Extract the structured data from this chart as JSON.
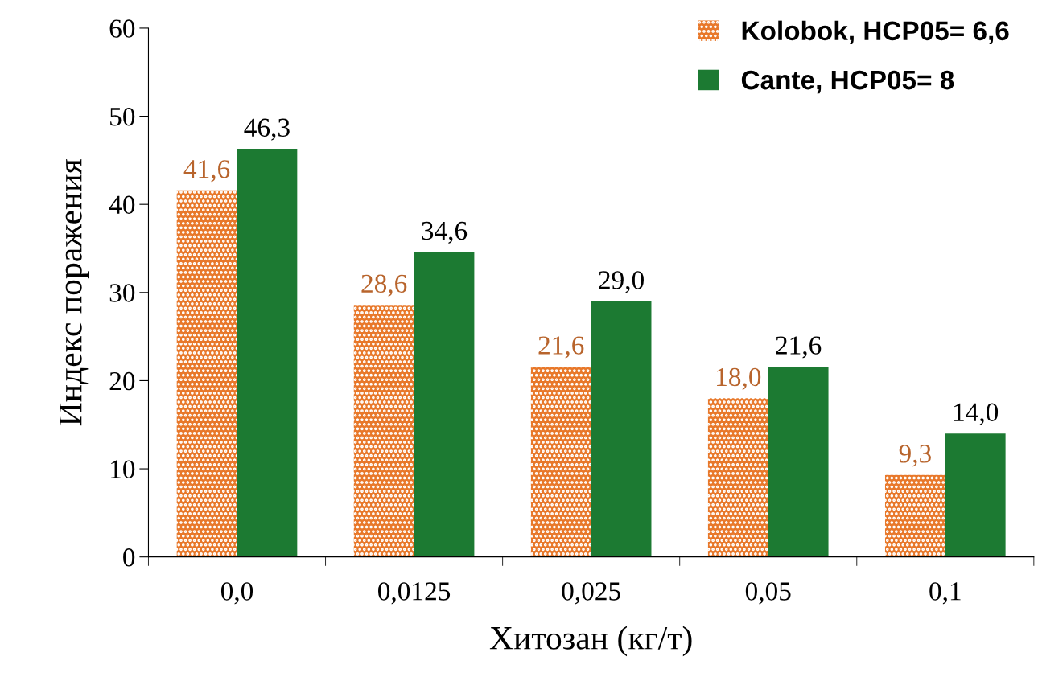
{
  "chart_data": {
    "type": "bar",
    "xlabel": "Хитозан (кг/т)",
    "ylabel": "Индекс поражения",
    "categories": [
      "0,0",
      "0,0125",
      "0,025",
      "0,05",
      "0,1"
    ],
    "series": [
      {
        "name": "Kolobok, НСР05= 6,6",
        "color": "#e8782a",
        "values": [
          41.6,
          28.6,
          21.6,
          18.0,
          9.3
        ],
        "value_labels": [
          "41,6",
          "28,6",
          "21,6",
          "18,0",
          "9,3"
        ]
      },
      {
        "name": "Cante, НСР05= 8",
        "color": "#1c7a32",
        "values": [
          46.3,
          34.6,
          29.0,
          21.6,
          14.0
        ],
        "value_labels": [
          "46,3",
          "34,6",
          "29,0",
          "21,6",
          "14,0"
        ]
      }
    ],
    "ylim": [
      0,
      60
    ],
    "yticks": [
      0,
      10,
      20,
      30,
      40,
      50,
      60
    ],
    "grid": false,
    "legend": "top right"
  }
}
